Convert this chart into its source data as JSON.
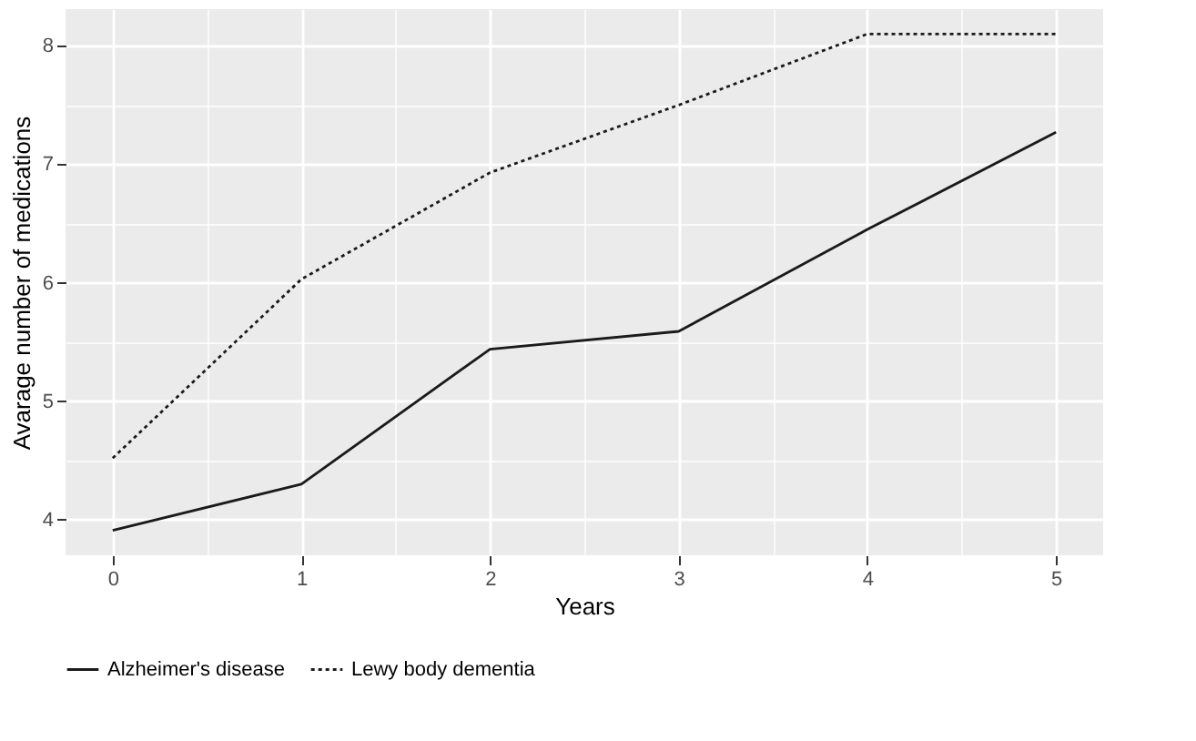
{
  "chart_data": {
    "type": "line",
    "xlabel": "Years",
    "ylabel": "Avarage number of medications",
    "x": [
      0,
      1,
      2,
      3,
      4,
      5
    ],
    "series": [
      {
        "name": "Alzheimer's disease",
        "color": "#1a1a1a",
        "line_style": "solid",
        "values": [
          3.91,
          4.3,
          5.44,
          5.59,
          6.45,
          7.27
        ]
      },
      {
        "name": "Lewy body dementia",
        "color": "#1a1a1a",
        "line_style": "dotted",
        "values": [
          4.52,
          6.03,
          6.93,
          7.5,
          8.1,
          8.1
        ]
      }
    ],
    "xlim": [
      -0.25,
      5.25
    ],
    "ylim": [
      3.7,
      8.31
    ],
    "xticks": [
      0,
      {
        "value": 0.5,
        "label": null
      },
      1,
      {
        "value": 1.5,
        "label": null
      },
      2,
      {
        "value": 2.5,
        "label": null
      },
      3,
      {
        "value": 3.5,
        "label": null
      },
      4,
      {
        "value": 4.5,
        "label": null
      },
      5
    ],
    "yticks": [
      4,
      {
        "value": 4.5,
        "label": null
      },
      5,
      {
        "value": 5.5,
        "label": null
      },
      6,
      {
        "value": 6.5,
        "label": null
      },
      7,
      {
        "value": 7.5,
        "label": null
      },
      8
    ],
    "grid": true,
    "legend": "bottom",
    "marker": "none"
  }
}
